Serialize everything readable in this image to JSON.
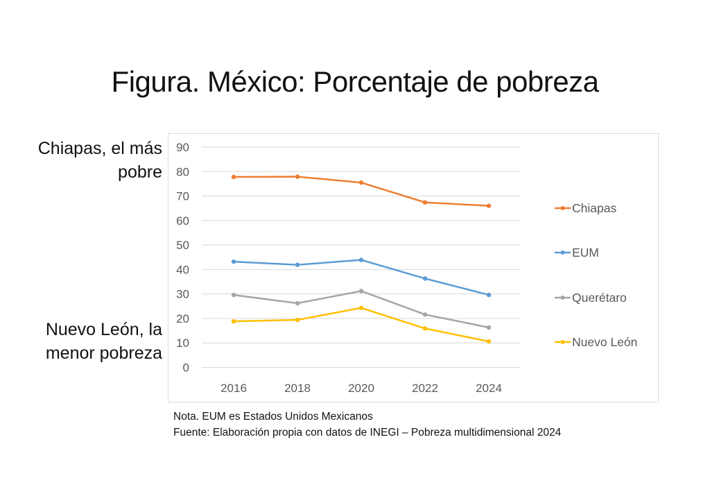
{
  "title": "Figura. México: Porcentaje de pobreza",
  "annotations": {
    "top_line1": "Chiapas, el más",
    "top_line2": "pobre",
    "bottom_line1": "Nuevo León, la",
    "bottom_line2": "menor pobreza"
  },
  "notes": {
    "nota": "Nota. EUM es Estados Unidos Mexicanos",
    "fuente": "Fuente: Elaboración propia con datos de INEGI – Pobreza multidimensional 2024"
  },
  "chart_data": {
    "type": "line",
    "title": "Figura. México: Porcentaje de pobreza",
    "xlabel": "",
    "ylabel": "",
    "categories": [
      "2016",
      "2018",
      "2020",
      "2022",
      "2024"
    ],
    "ylim": [
      0,
      90
    ],
    "yticks": [
      0,
      10,
      20,
      30,
      40,
      50,
      60,
      70,
      80,
      90
    ],
    "grid": true,
    "legend": "right",
    "series": [
      {
        "name": "Chiapas",
        "color": "#ED7D31",
        "values": [
          77.8,
          77.9,
          75.5,
          67.4,
          66.0
        ]
      },
      {
        "name": "EUM",
        "color": "#5B9BD5",
        "values": [
          43.2,
          41.9,
          43.9,
          36.3,
          29.6
        ]
      },
      {
        "name": "Querétaro",
        "color": "#A5A5A5",
        "values": [
          29.6,
          26.2,
          31.2,
          21.6,
          16.3
        ]
      },
      {
        "name": "Nuevo León",
        "color": "#FFC000",
        "values": [
          18.8,
          19.4,
          24.3,
          15.9,
          10.6
        ]
      }
    ]
  }
}
